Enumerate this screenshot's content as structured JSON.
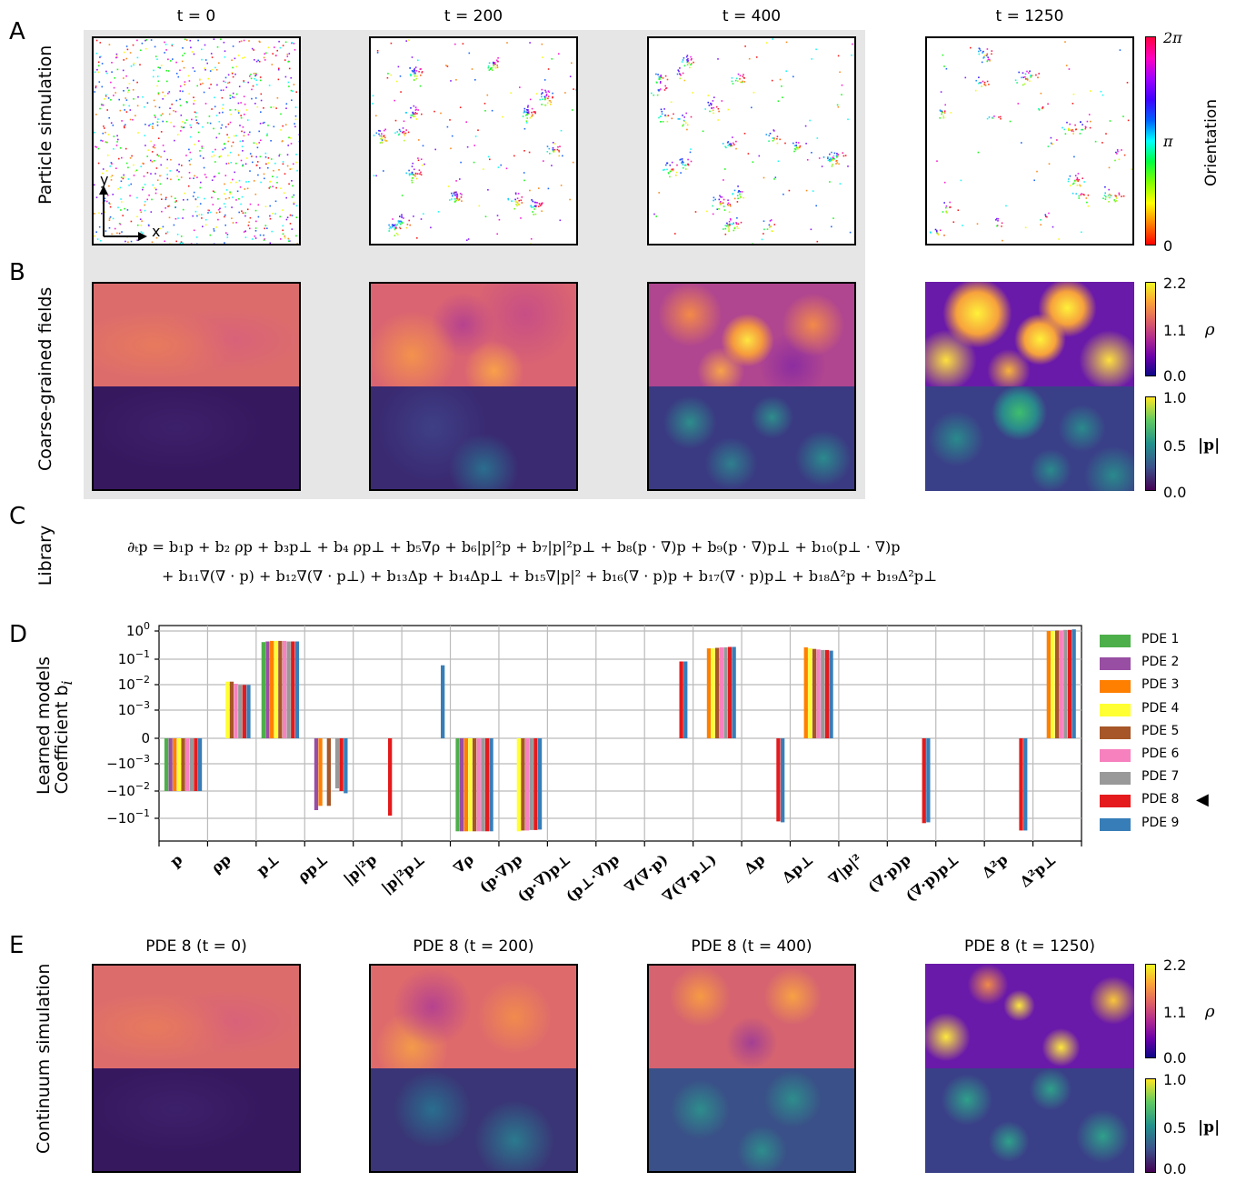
{
  "panel_letters": {
    "A": "A",
    "B": "B",
    "C": "C",
    "D": "D",
    "E": "E"
  },
  "row_labels": {
    "A": "Particle simulation",
    "B": "Coarse-grained fields",
    "C": "Library",
    "D_line1": "Learned models",
    "D_line2": "Coefficient b",
    "D_sub": "i",
    "E": "Continuum simulation"
  },
  "time_titles": [
    "t = 0",
    "t = 200",
    "t = 400",
    "t = 1250"
  ],
  "pde_titles": [
    "PDE 8 (t = 0)",
    "PDE 8 (t = 200)",
    "PDE 8 (t = 400)",
    "PDE 8 (t = 1250)"
  ],
  "axes_labels": {
    "x": "x",
    "y": "y"
  },
  "orientation_bar": {
    "label": "Orientation",
    "ticks": [
      "2π",
      "π",
      "0"
    ]
  },
  "rho_bar": {
    "label": "ρ",
    "ticks": [
      "2.2",
      "1.1",
      "0.0"
    ]
  },
  "p_bar": {
    "label": "|p|",
    "ticks": [
      "1.0",
      "0.5",
      "0.0"
    ]
  },
  "library_equation": {
    "line1": "∂ₜp = b₁p + b₂ ρp + b₃p⊥ + b₄ ρp⊥ + b₅∇ρ + b₆|p|²p + b₇|p|²p⊥ + b₈(p · ∇)p + b₉(p · ∇)p⊥ + b₁₀(p⊥ · ∇)p",
    "line2": "+ b₁₁∇(∇ · p) + b₁₂∇(∇ · p⊥) + b₁₃Δp + b₁₄Δp⊥ + b₁₅∇|p|² + b₁₆(∇ · p)p + b₁₇(∇ · p)p⊥ + b₁₈Δ²p + b₁₉Δ²p⊥"
  },
  "legend_marker": "◀",
  "chart_data": {
    "type": "bar",
    "scale": "symlog",
    "title": "",
    "xlabel": "",
    "ylabel": "Coefficient b_i",
    "y_tick_labels": [
      "10^0",
      "10^-1",
      "10^-2",
      "10^-3",
      "0",
      "-10^-3",
      "-10^-2",
      "-10^-1"
    ],
    "grid": true,
    "legend_placement": "right",
    "categories": [
      "p",
      "ρp",
      "p⊥",
      "ρp⊥",
      "|p|²p",
      "|p|²p⊥",
      "∇ρ",
      "(p·∇)p",
      "(p·∇)p⊥",
      "(p⊥·∇)p",
      "∇(∇·p)",
      "∇(∇·p⊥)",
      "Δp",
      "Δp⊥",
      "∇|p|²",
      "(∇·p)p",
      "(∇·p)p⊥",
      "Δ²p",
      "Δ²p⊥"
    ],
    "series": [
      {
        "name": "PDE 1",
        "color": "#4daf4a",
        "values": [
          -0.01,
          0,
          0.38,
          0,
          0,
          0,
          -0.3,
          0,
          0,
          0,
          0,
          0,
          0,
          0,
          0,
          0,
          0,
          0,
          0
        ]
      },
      {
        "name": "PDE 2",
        "color": "#984ea3",
        "values": [
          -0.01,
          0,
          0.4,
          -0.05,
          0,
          0,
          -0.3,
          0,
          0,
          0,
          0,
          0,
          0,
          0,
          0,
          0,
          0,
          0,
          0
        ]
      },
      {
        "name": "PDE 3",
        "color": "#ff7f00",
        "values": [
          -0.01,
          0,
          0.42,
          -0.035,
          0,
          0,
          -0.3,
          0,
          0,
          0,
          0,
          0.22,
          0,
          0.24,
          0,
          0,
          0,
          0,
          1.0
        ]
      },
      {
        "name": "PDE 4",
        "color": "#ffff33",
        "values": [
          -0.01,
          0.012,
          0.42,
          0,
          0,
          0,
          -0.3,
          -0.3,
          0,
          0,
          0,
          0.22,
          0,
          0.22,
          0,
          0,
          0,
          0,
          1.0
        ]
      },
      {
        "name": "PDE 5",
        "color": "#a65628",
        "values": [
          -0.01,
          0.012,
          0.42,
          -0.035,
          0,
          0,
          -0.3,
          -0.28,
          0,
          0,
          0,
          0.23,
          0,
          0.21,
          0,
          0,
          0,
          0,
          1.05
        ]
      },
      {
        "name": "PDE 6",
        "color": "#f781bf",
        "values": [
          -0.01,
          0.01,
          0.42,
          0,
          0,
          0,
          -0.3,
          -0.28,
          0,
          0,
          0,
          0.24,
          0,
          0.2,
          0,
          0,
          0,
          0,
          1.05
        ]
      },
      {
        "name": "PDE 7",
        "color": "#999999",
        "values": [
          -0.01,
          0.009,
          0.4,
          -0.008,
          0,
          0,
          -0.3,
          -0.27,
          0,
          0,
          0,
          0.24,
          0,
          0.19,
          0,
          0,
          0,
          0,
          1.1
        ]
      },
      {
        "name": "PDE 8",
        "color": "#e41a1c",
        "values": [
          -0.01,
          0.009,
          0.4,
          -0.01,
          -0.08,
          0,
          -0.3,
          -0.27,
          0,
          0,
          0.07,
          0.25,
          -0.13,
          0.19,
          0,
          -0.15,
          0,
          -0.28,
          1.1
        ]
      },
      {
        "name": "PDE 9",
        "color": "#377eb8",
        "values": [
          -0.01,
          0.009,
          0.4,
          -0.012,
          0,
          0.05,
          -0.3,
          -0.26,
          0,
          0,
          0.07,
          0.25,
          -0.14,
          0.18,
          0,
          -0.14,
          0,
          -0.28,
          1.15
        ]
      }
    ]
  }
}
